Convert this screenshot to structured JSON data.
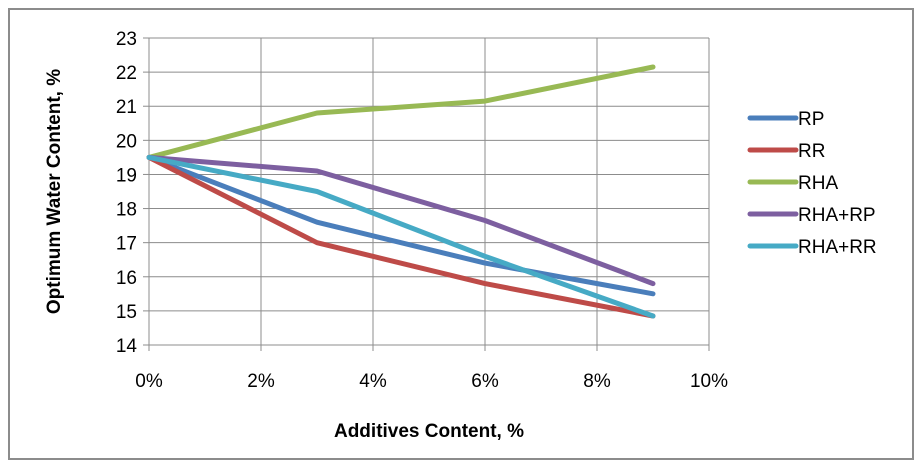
{
  "chart_data": {
    "type": "line",
    "title": "",
    "xlabel": "Additives Content, %",
    "ylabel": "Optimum Water Content, %",
    "x": [
      0,
      3,
      6,
      9
    ],
    "x_tick_values": [
      0,
      2,
      4,
      6,
      8,
      10
    ],
    "x_tick_labels": [
      "0%",
      "2%",
      "4%",
      "6%",
      "8%",
      "10%"
    ],
    "xlim": [
      0,
      10
    ],
    "y_ticks": [
      14,
      15,
      16,
      17,
      18,
      19,
      20,
      21,
      22,
      23
    ],
    "y_tick_labels": [
      "14",
      "15",
      "16",
      "17",
      "18",
      "19",
      "20",
      "21",
      "22",
      "23"
    ],
    "ylim": [
      14,
      23
    ],
    "grid": true,
    "legend_position": "right",
    "series": [
      {
        "name": "RP",
        "color": "#4a7ebb",
        "values": [
          19.5,
          17.6,
          16.4,
          15.5
        ]
      },
      {
        "name": "RR",
        "color": "#be4b48",
        "values": [
          19.5,
          17.0,
          15.8,
          14.85
        ]
      },
      {
        "name": "RHA",
        "color": "#98b954",
        "values": [
          19.5,
          20.8,
          21.15,
          22.15
        ]
      },
      {
        "name": "RHA+RP",
        "color": "#7d5fa0",
        "values": [
          19.5,
          19.1,
          17.65,
          15.8
        ]
      },
      {
        "name": "RHA+RR",
        "color": "#46aac5",
        "values": [
          19.5,
          18.5,
          16.6,
          14.85
        ]
      }
    ]
  }
}
